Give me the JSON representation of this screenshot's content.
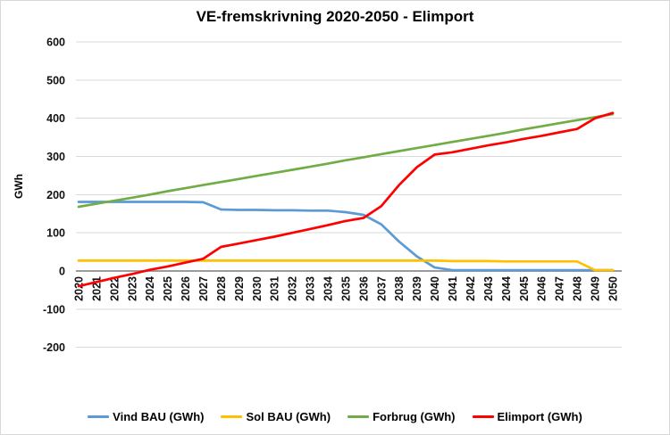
{
  "chart_data": {
    "type": "line",
    "title": "VE-fremskrivning 2020-2050 - Elimport",
    "ylabel": "GWh",
    "xlabel": "",
    "ylim": [
      -200,
      600
    ],
    "ytick_step": 100,
    "y_ticks": [
      600,
      500,
      400,
      300,
      200,
      100,
      0,
      -100,
      -200
    ],
    "grid": "horizontal",
    "legend_position": "bottom",
    "x": [
      2020,
      2021,
      2022,
      2023,
      2024,
      2025,
      2026,
      2027,
      2028,
      2029,
      2030,
      2031,
      2032,
      2033,
      2034,
      2035,
      2036,
      2037,
      2038,
      2039,
      2040,
      2041,
      2042,
      2043,
      2044,
      2045,
      2046,
      2047,
      2048,
      2049,
      2050
    ],
    "series": [
      {
        "name": "Vind BAU (GWh)",
        "color": "#5B9BD5",
        "values": [
          181,
          181,
          181,
          181,
          181,
          181,
          181,
          180,
          161,
          160,
          160,
          159,
          159,
          158,
          158,
          154,
          147,
          122,
          77,
          38,
          9,
          2,
          2,
          2,
          2,
          2,
          2,
          2,
          2,
          2,
          2
        ]
      },
      {
        "name": "Sol BAU (GWh)",
        "color": "#FFC000",
        "values": [
          27,
          27,
          27,
          27,
          27,
          27,
          27,
          27,
          27,
          27,
          27,
          27,
          27,
          27,
          27,
          27,
          27,
          27,
          27,
          27,
          27,
          26,
          26,
          26,
          25,
          25,
          25,
          25,
          25,
          2,
          2
        ]
      },
      {
        "name": "Forbrug (GWh)",
        "color": "#70AD47",
        "values": [
          168,
          176,
          184,
          192,
          200,
          209,
          217,
          225,
          233,
          241,
          249,
          257,
          265,
          273,
          281,
          290,
          298,
          306,
          314,
          322,
          330,
          338,
          346,
          354,
          362,
          371,
          379,
          387,
          395,
          403,
          411
        ]
      },
      {
        "name": "Elimport (GWh)",
        "color": "#FF0000",
        "values": [
          -40,
          -29,
          -18,
          -8,
          3,
          12,
          22,
          32,
          63,
          72,
          81,
          90,
          100,
          110,
          120,
          131,
          139,
          170,
          225,
          272,
          305,
          311,
          320,
          329,
          337,
          346,
          354,
          363,
          372,
          400,
          414
        ]
      }
    ],
    "axis_colors": {
      "gridline": "#D9D9D9",
      "zero_line": "#9B9B9B",
      "tick_label": "#111111"
    }
  }
}
